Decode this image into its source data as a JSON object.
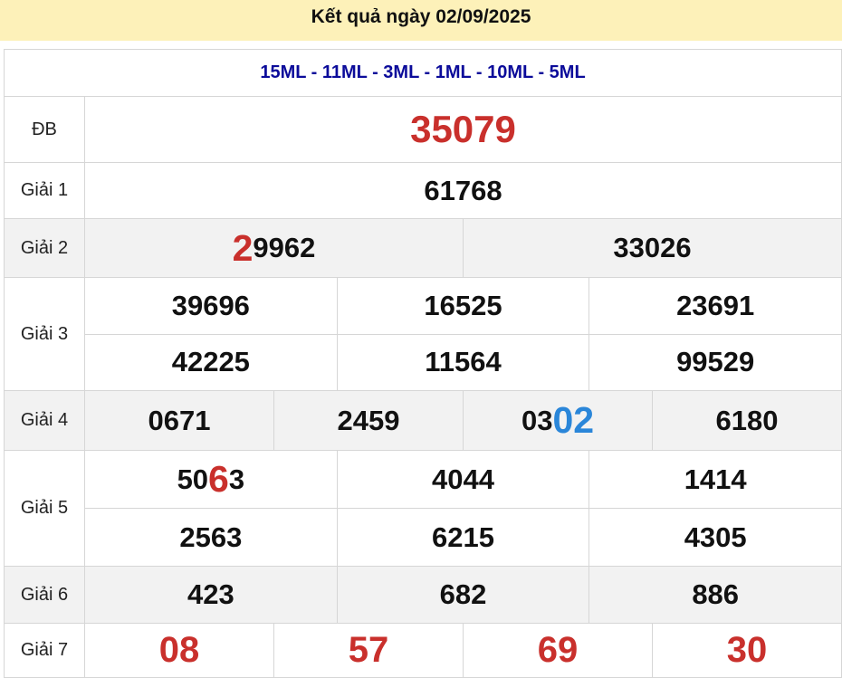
{
  "title": "Kết quả ngày 02/09/2025",
  "codes": "15ML - 11ML - 3ML - 1ML - 10ML - 5ML",
  "colors": {
    "header_bg": "#fdf1b9",
    "codes": "#0b0b9a",
    "red": "#c9302c",
    "blue": "#2a86d9",
    "gray_row": "#f2f2f2"
  },
  "prizes": [
    {
      "label": "ĐB",
      "cls": "db",
      "rows": [
        [
          [
            {
              "t": "35079"
            }
          ]
        ]
      ]
    },
    {
      "label": "Giải 1",
      "rows": [
        [
          [
            {
              "t": "61768"
            }
          ]
        ]
      ]
    },
    {
      "label": "Giải 2",
      "gray": true,
      "rows": [
        [
          [
            {
              "t": "2",
              "h": "red"
            },
            {
              "t": "9962"
            }
          ],
          [
            {
              "t": "33026"
            }
          ]
        ]
      ]
    },
    {
      "label": "Giải 3",
      "rows": [
        [
          [
            {
              "t": "39696"
            }
          ],
          [
            {
              "t": "16525"
            }
          ],
          [
            {
              "t": "23691"
            }
          ]
        ],
        [
          [
            {
              "t": "42225"
            }
          ],
          [
            {
              "t": "11564"
            }
          ],
          [
            {
              "t": "99529"
            }
          ]
        ]
      ]
    },
    {
      "label": "Giải 4",
      "gray": true,
      "rows": [
        [
          [
            {
              "t": "0671"
            }
          ],
          [
            {
              "t": "2459"
            }
          ],
          [
            {
              "t": "03"
            },
            {
              "t": "02",
              "h": "blue"
            }
          ],
          [
            {
              "t": "6180"
            }
          ]
        ]
      ]
    },
    {
      "label": "Giải 5",
      "rows": [
        [
          [
            {
              "t": "50"
            },
            {
              "t": "6",
              "h": "red"
            },
            {
              "t": "3"
            }
          ],
          [
            {
              "t": "4044"
            }
          ],
          [
            {
              "t": "1414"
            }
          ]
        ],
        [
          [
            {
              "t": "2563"
            }
          ],
          [
            {
              "t": "6215"
            }
          ],
          [
            {
              "t": "4305"
            }
          ]
        ]
      ]
    },
    {
      "label": "Giải 6",
      "gray": true,
      "rows": [
        [
          [
            {
              "t": "423"
            }
          ],
          [
            {
              "t": "682"
            }
          ],
          [
            {
              "t": "886"
            }
          ]
        ]
      ]
    },
    {
      "label": "Giải 7",
      "cls": "g7",
      "rows": [
        [
          [
            {
              "t": "08"
            }
          ],
          [
            {
              "t": "57"
            }
          ],
          [
            {
              "t": "69"
            }
          ],
          [
            {
              "t": "30"
            }
          ]
        ]
      ]
    }
  ]
}
